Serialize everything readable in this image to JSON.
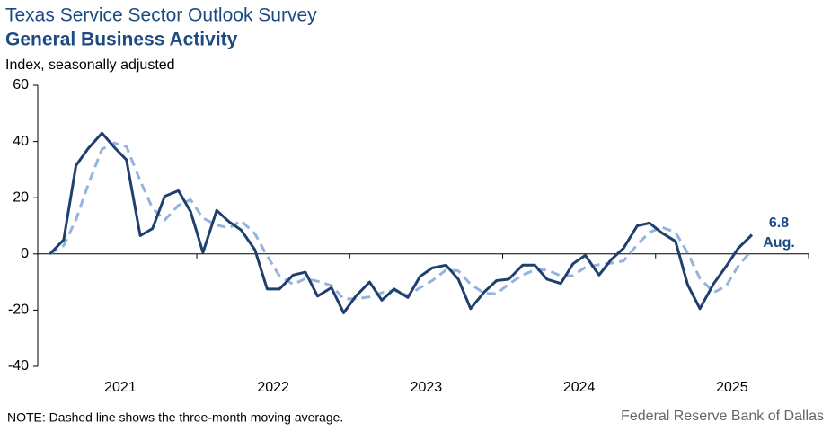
{
  "chart_data": {
    "type": "line",
    "title": "Texas Service Sector Outlook Survey",
    "subtitle": "General Business Activity",
    "ylabel": "Index, seasonally adjusted",
    "note": "NOTE: Dashed line shows the three-month moving average.",
    "source": "Federal Reserve Bank of Dallas",
    "annotation": "Aug.",
    "x": [
      2021.04,
      2021.13,
      2021.21,
      2021.29,
      2021.38,
      2021.46,
      2021.54,
      2021.63,
      2021.71,
      2021.79,
      2021.88,
      2021.96,
      2022.04,
      2022.13,
      2022.21,
      2022.29,
      2022.38,
      2022.46,
      2022.54,
      2022.63,
      2022.71,
      2022.79,
      2022.88,
      2022.96,
      2023.04,
      2023.13,
      2023.21,
      2023.29,
      2023.38,
      2023.46,
      2023.54,
      2023.63,
      2023.71,
      2023.79,
      2023.88,
      2023.96,
      2024.04,
      2024.13,
      2024.21,
      2024.29,
      2024.38,
      2024.46,
      2024.54,
      2024.63,
      2024.71,
      2024.79,
      2024.88,
      2024.96,
      2025.04,
      2025.13,
      2025.21,
      2025.29,
      2025.38,
      2025.46,
      2025.54,
      2025.63
    ],
    "series": [
      {
        "name": "General Business Activity",
        "color": "#1f406e",
        "dash": false,
        "values": [
          0,
          5,
          31.5,
          37.5,
          43,
          38,
          33.5,
          6.5,
          9,
          20.5,
          22.5,
          15,
          0.5,
          15.5,
          11.5,
          8.5,
          1.5,
          -12.5,
          -12.5,
          -7.5,
          -6.5,
          -15,
          -12,
          -21,
          -15,
          -10,
          -16.5,
          -12.5,
          -15.5,
          -8,
          -5,
          -4,
          -9,
          -19.5,
          -13.5,
          -9.5,
          -9,
          -4,
          -4,
          -9,
          -10.5,
          -3.5,
          -0.5,
          -7.5,
          -2,
          2,
          10,
          11,
          7.5,
          4.5,
          -11,
          -19.5,
          -10.5,
          -4.5,
          2,
          6.8
        ]
      },
      {
        "name": "Three-month moving average",
        "color": "#94b4de",
        "dash": true,
        "values": [
          0,
          3,
          12.2,
          24.7,
          37.3,
          39.5,
          38.2,
          26,
          16.3,
          12,
          17.3,
          19.3,
          12.7,
          10.3,
          9.2,
          11.8,
          7.2,
          -0.8,
          -7.8,
          -10.8,
          -8.8,
          -9.7,
          -11.2,
          -16,
          -16,
          -15.3,
          -13.8,
          -13,
          -14.8,
          -12,
          -9.5,
          -5.7,
          -6,
          -10.8,
          -14,
          -14.2,
          -10.7,
          -7.5,
          -5.7,
          -5.7,
          -7.8,
          -7.7,
          -4.8,
          -3.8,
          -3.3,
          -2.5,
          3.3,
          7.7,
          9.5,
          7.7,
          0.3,
          -8.7,
          -13.7,
          -11.5,
          -4.3,
          1.4
        ]
      }
    ],
    "xlim": [
      2020.96,
      2026.0
    ],
    "xticks": [
      {
        "value": 2021.5,
        "label": "2021"
      },
      {
        "value": 2022.5,
        "label": "2022"
      },
      {
        "value": 2023.5,
        "label": "2023"
      },
      {
        "value": 2024.5,
        "label": "2024"
      },
      {
        "value": 2025.5,
        "label": "2025"
      }
    ],
    "ylim": [
      -40,
      60
    ],
    "yticks": [
      -40,
      -20,
      0,
      20,
      40,
      60
    ],
    "grid": false
  }
}
